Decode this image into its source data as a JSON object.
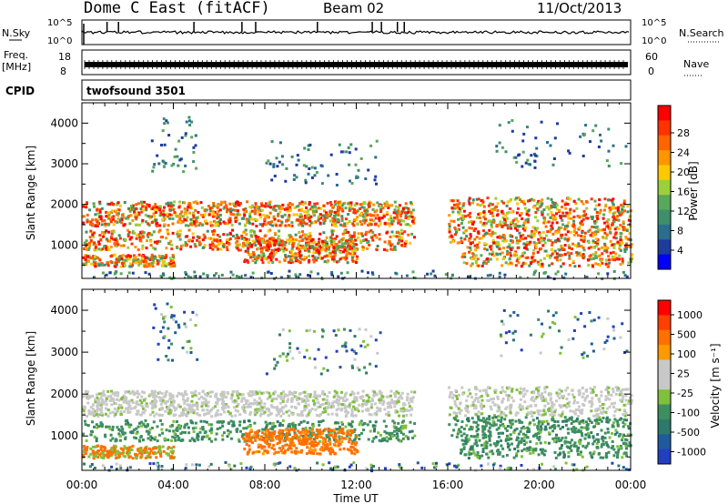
{
  "header": {
    "station": "Dome C East (fitACF)",
    "beam": "Beam 02",
    "date": "11/Oct/2013"
  },
  "strips": {
    "nsky_label": "N.Sky",
    "nsky_ticks": [
      "10^5",
      "10^0"
    ],
    "nsearch_label": "N.Search",
    "nsearch_ticks": [
      "10^5",
      "10^0"
    ],
    "freq_label_1": "Freq.",
    "freq_label_2": "[MHz]",
    "freq_ticks": [
      "18",
      "8"
    ],
    "nave_label": "Nave",
    "nave_ticks": [
      "60",
      "0"
    ],
    "cpid_label": "CPID",
    "cpid_value": "twofsound 3501"
  },
  "colors": {
    "power": [
      "#0000ff",
      "#1e3c9c",
      "#2a6e8e",
      "#3f8f6a",
      "#58a85a",
      "#9ccf3c",
      "#ffc800",
      "#ff9600",
      "#ff6400",
      "#ff3200",
      "#ff0000"
    ],
    "velocity": [
      "#2040c0",
      "#1f5a9f",
      "#2e7a6a",
      "#3e8f60",
      "#7fc03c",
      "#c8c8c8",
      "#c8c8c8",
      "#ff9900",
      "#ff7000",
      "#ff4000",
      "#ff0000"
    ]
  },
  "chart_data": [
    {
      "type": "heatmap",
      "panel": "power",
      "xlabel": "Time UT",
      "ylabel": "Slant Range [km]",
      "xticks": [
        "00:00",
        "04:00",
        "08:00",
        "12:00",
        "16:00",
        "20:00",
        "00:00"
      ],
      "xlim_hours": [
        0,
        24
      ],
      "ylim_km": [
        180,
        4500
      ],
      "yticks": [
        1000,
        2000,
        3000,
        4000
      ],
      "colorbar_label": "Power [dB]",
      "colorbar_ticks": [
        "28",
        "24",
        "20",
        "16",
        "12",
        "8",
        "4"
      ],
      "clim_db": [
        0,
        30
      ]
    },
    {
      "type": "heatmap",
      "panel": "velocity",
      "xlabel": "Time UT",
      "ylabel": "Slant Range [km]",
      "xticks": [
        "00:00",
        "04:00",
        "08:00",
        "12:00",
        "16:00",
        "20:00",
        "00:00"
      ],
      "xlim_hours": [
        0,
        24
      ],
      "ylim_km": [
        180,
        4500
      ],
      "yticks": [
        1000,
        2000,
        3000,
        4000
      ],
      "colorbar_label": "Velocity [m s⁻¹]",
      "colorbar_ticks": [
        "1000",
        "500",
        "100",
        "25",
        "-25",
        "-100",
        "-500",
        "-1000"
      ],
      "clim_ms": [
        -1000,
        1000
      ]
    }
  ]
}
